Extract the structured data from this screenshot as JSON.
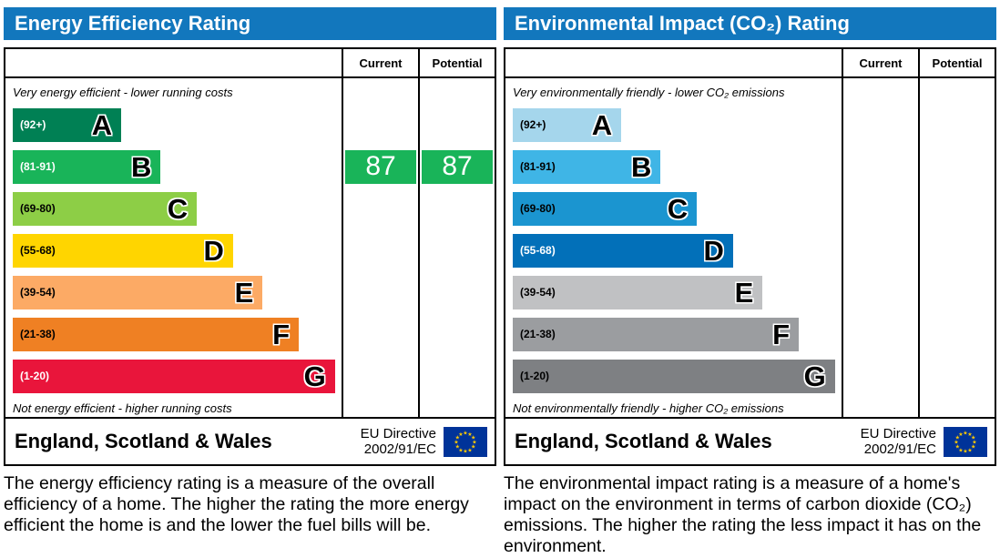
{
  "left_panel": {
    "title": "Energy Efficiency Rating",
    "col_current": "Current",
    "col_potential": "Potential",
    "top_note": "Very energy efficient - lower running costs",
    "bottom_note": "Not energy efficient - higher running costs",
    "bands": [
      {
        "range": "(92+)",
        "letter": "A",
        "color": "#008054",
        "width_pct": 33,
        "range_color": "#ffffff"
      },
      {
        "range": "(81-91)",
        "letter": "B",
        "color": "#19b459",
        "width_pct": 45,
        "range_color": "#ffffff"
      },
      {
        "range": "(69-80)",
        "letter": "C",
        "color": "#8dce46",
        "width_pct": 56,
        "range_color": "#000000"
      },
      {
        "range": "(55-68)",
        "letter": "D",
        "color": "#ffd500",
        "width_pct": 67,
        "range_color": "#000000"
      },
      {
        "range": "(39-54)",
        "letter": "E",
        "color": "#fcaa65",
        "width_pct": 76,
        "range_color": "#000000"
      },
      {
        "range": "(21-38)",
        "letter": "F",
        "color": "#ef8023",
        "width_pct": 87,
        "range_color": "#000000"
      },
      {
        "range": "(1-20)",
        "letter": "G",
        "color": "#e9153b",
        "width_pct": 98,
        "range_color": "#ffffff"
      }
    ],
    "current_value": "87",
    "potential_value": "87",
    "indicator_row": 1,
    "indicator_color": "#19b459",
    "footer_region": "England, Scotland & Wales",
    "directive_line1": "EU Directive",
    "directive_line2": "2002/91/EC",
    "description": "The energy efficiency rating is a measure of the overall efficiency of a home. The higher the rating the more energy efficient the home is and the lower the fuel bills will be."
  },
  "right_panel": {
    "title": "Environmental Impact (CO₂) Rating",
    "col_current": "Current",
    "col_potential": "Potential",
    "top_note": "Very environmentally friendly - lower CO₂ emissions",
    "bottom_note": "Not environmentally friendly - higher CO₂ emissions",
    "bands": [
      {
        "range": "(92+)",
        "letter": "A",
        "color": "#a5d6ec",
        "width_pct": 33,
        "range_color": "#000000"
      },
      {
        "range": "(81-91)",
        "letter": "B",
        "color": "#3fb5e6",
        "width_pct": 45,
        "range_color": "#000000"
      },
      {
        "range": "(69-80)",
        "letter": "C",
        "color": "#1b95d0",
        "width_pct": 56,
        "range_color": "#000000"
      },
      {
        "range": "(55-68)",
        "letter": "D",
        "color": "#0270b9",
        "width_pct": 67,
        "range_color": "#ffffff"
      },
      {
        "range": "(39-54)",
        "letter": "E",
        "color": "#c0c1c3",
        "width_pct": 76,
        "range_color": "#000000"
      },
      {
        "range": "(21-38)",
        "letter": "F",
        "color": "#9b9da0",
        "width_pct": 87,
        "range_color": "#000000"
      },
      {
        "range": "(1-20)",
        "letter": "G",
        "color": "#7e8083",
        "width_pct": 98,
        "range_color": "#000000"
      }
    ],
    "current_value": "",
    "potential_value": "",
    "indicator_row": null,
    "indicator_color": "",
    "footer_region": "England, Scotland & Wales",
    "directive_line1": "EU Directive",
    "directive_line2": "2002/91/EC",
    "description": "The environmental impact rating is a measure of a home's impact on the environment in terms of carbon dioxide (CO₂) emissions. The higher the rating the less impact it has on the environment."
  },
  "chart_data": [
    {
      "type": "bar",
      "title": "Energy Efficiency Rating",
      "categories": [
        "A",
        "B",
        "C",
        "D",
        "E",
        "F",
        "G"
      ],
      "band_ranges": [
        "92+",
        "81-91",
        "69-80",
        "55-68",
        "39-54",
        "21-38",
        "1-20"
      ],
      "band_colors": [
        "#008054",
        "#19b459",
        "#8dce46",
        "#ffd500",
        "#fcaa65",
        "#ef8023",
        "#e9153b"
      ],
      "series": [
        {
          "name": "Current",
          "value": 87,
          "band": "B"
        },
        {
          "name": "Potential",
          "value": 87,
          "band": "B"
        }
      ],
      "top_note": "Very energy efficient - lower running costs",
      "bottom_note": "Not energy efficient - higher running costs",
      "region": "England, Scotland & Wales",
      "directive": "EU Directive 2002/91/EC"
    },
    {
      "type": "bar",
      "title": "Environmental Impact (CO₂) Rating",
      "categories": [
        "A",
        "B",
        "C",
        "D",
        "E",
        "F",
        "G"
      ],
      "band_ranges": [
        "92+",
        "81-91",
        "69-80",
        "55-68",
        "39-54",
        "21-38",
        "1-20"
      ],
      "band_colors": [
        "#a5d6ec",
        "#3fb5e6",
        "#1b95d0",
        "#0270b9",
        "#c0c1c3",
        "#9b9da0",
        "#7e8083"
      ],
      "series": [
        {
          "name": "Current",
          "value": null,
          "band": null
        },
        {
          "name": "Potential",
          "value": null,
          "band": null
        }
      ],
      "top_note": "Very environmentally friendly - lower CO₂ emissions",
      "bottom_note": "Not environmentally friendly - higher CO₂ emissions",
      "region": "England, Scotland & Wales",
      "directive": "EU Directive 2002/91/EC"
    }
  ]
}
